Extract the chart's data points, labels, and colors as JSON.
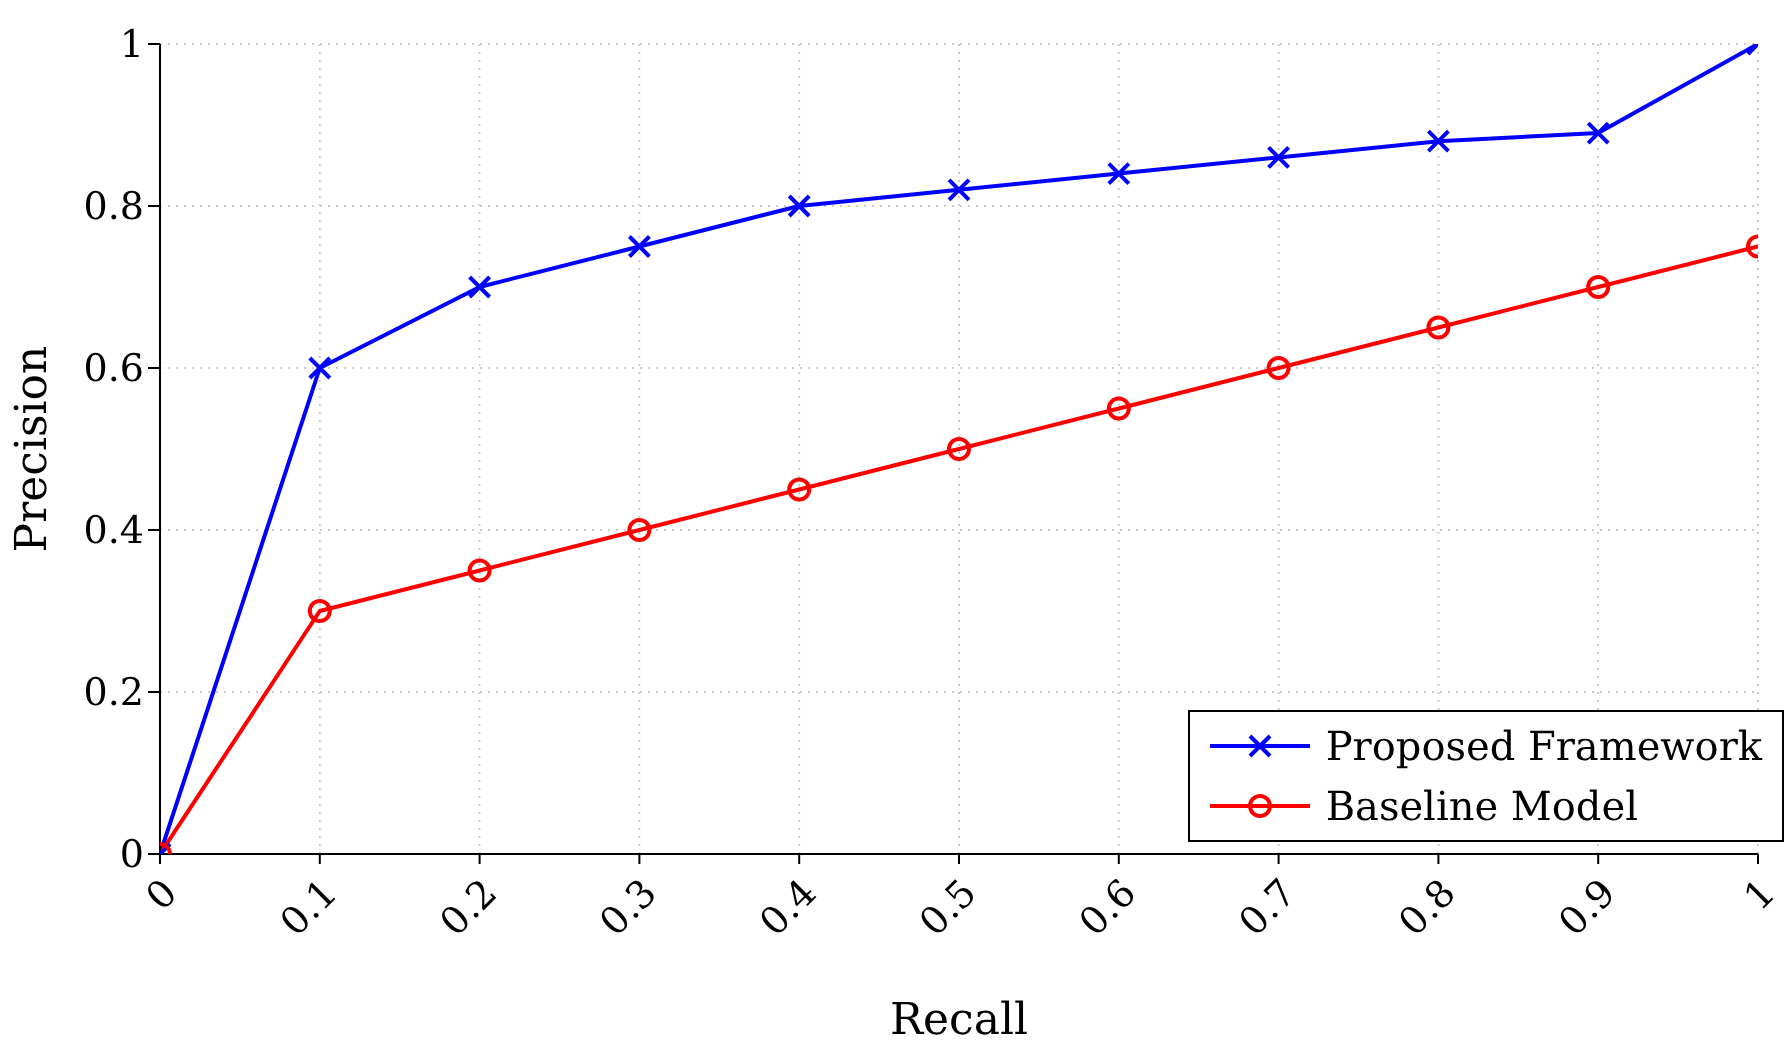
{
  "chart_data": {
    "type": "line",
    "xlabel": "Recall",
    "ylabel": "Precision",
    "x": [
      0,
      0.1,
      0.2,
      0.3,
      0.4,
      0.5,
      0.6,
      0.7,
      0.8,
      0.9,
      1
    ],
    "series": [
      {
        "name": "Proposed Framework",
        "color": "#0000ff",
        "marker": "cross",
        "values": [
          0,
          0.6,
          0.7,
          0.75,
          0.8,
          0.82,
          0.84,
          0.86,
          0.88,
          0.89,
          1
        ]
      },
      {
        "name": "Baseline Model",
        "color": "#ff0000",
        "marker": "circle",
        "values": [
          0,
          0.3,
          0.35,
          0.4,
          0.45,
          0.5,
          0.55,
          0.6,
          0.65,
          0.7,
          0.75
        ]
      }
    ],
    "xlim": [
      0,
      1
    ],
    "xticks": [
      0,
      0.1,
      0.2,
      0.3,
      0.4,
      0.5,
      0.6,
      0.7,
      0.8,
      0.9,
      1
    ],
    "ylim": [
      0,
      1
    ],
    "yticks": [
      0,
      0.2,
      0.4,
      0.6,
      0.8,
      1
    ],
    "grid": true,
    "legend": "bottom right",
    "line_style": "solid"
  }
}
